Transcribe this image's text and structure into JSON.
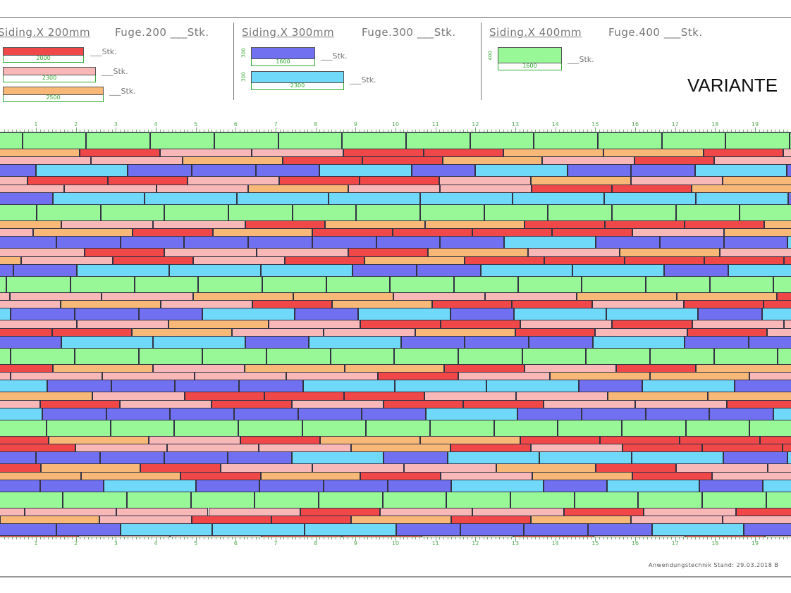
{
  "header": {
    "groups": [
      {
        "title": "Siding.X 200mm",
        "fuge": "Fuge.200 ___Stk.",
        "pieces": [
          {
            "length": "2000",
            "height": "200",
            "color": "#f04848",
            "count": "___Stk."
          },
          {
            "length": "2300",
            "height": "200",
            "color": "#f8b8b8",
            "count": "___Stk."
          },
          {
            "length": "2500",
            "height": "200",
            "color": "#f8b878",
            "count": "___Stk."
          }
        ]
      },
      {
        "title": "Siding.X 300mm",
        "fuge": "Fuge.300 ___Stk.",
        "pieces": [
          {
            "length": "1600",
            "height": "300",
            "color": "#7070f0",
            "count": "___Stk."
          },
          {
            "length": "2300",
            "height": "300",
            "color": "#70d8f8",
            "count": "___Stk."
          }
        ]
      },
      {
        "title": "Siding.X 400mm",
        "fuge": "Fuge.400 ___Stk.",
        "pieces": [
          {
            "length": "1600",
            "height": "400",
            "color": "#98f898",
            "count": "___Stk."
          }
        ]
      }
    ],
    "variant": "VARIANTE"
  },
  "ruler": {
    "labels": [
      "1",
      "2",
      "3",
      "4",
      "5",
      "6",
      "7",
      "8",
      "9",
      "10",
      "11",
      "12",
      "13",
      "14",
      "15",
      "16",
      "17",
      "18",
      "19"
    ]
  },
  "footer": "Anwendungstechnik Stand: 29.03.2018 B"
}
